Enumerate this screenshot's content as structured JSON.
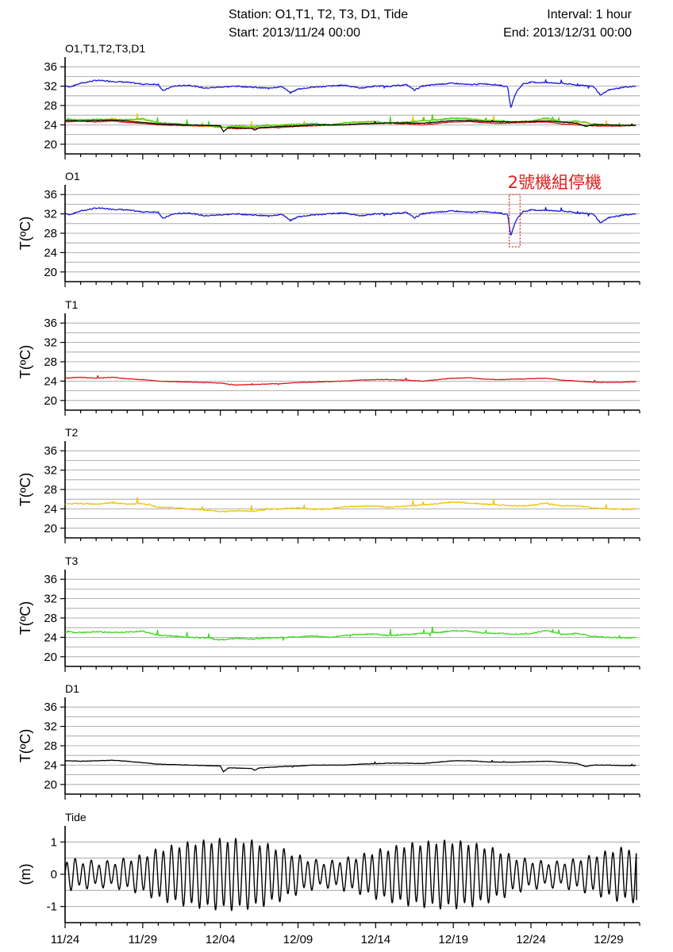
{
  "header": {
    "station": "Station: O1,T1, T2, T3, D1, Tide",
    "interval": "Interval: 1 hour",
    "start": "Start: 2013/11/24 00:00",
    "end": "End: 2013/12/31 00:00"
  },
  "colors": {
    "O1": "#1a1ad6",
    "T1": "#d81818",
    "T2": "#f0c400",
    "T3": "#3cd81e",
    "D1": "#000000",
    "Tide": "#000000",
    "annotation": "#e21b1b",
    "grid": "#9a9a9a"
  },
  "x_axis": {
    "tick_labels": [
      "11/24",
      "11/29",
      "12/04",
      "12/09",
      "12/14",
      "12/19",
      "12/24",
      "12/29"
    ],
    "tick_days": [
      0,
      5,
      10,
      15,
      20,
      25,
      30,
      35
    ],
    "xlim_days": [
      0,
      37
    ]
  },
  "chart_data": [
    {
      "type": "line",
      "title": "O1,T1,T2,T3,D1",
      "ylabel": "",
      "ylim": [
        18,
        38
      ],
      "yticks": [
        20,
        24,
        28,
        32,
        36
      ],
      "grid": true,
      "series": [
        "O1",
        "T1",
        "T2",
        "T3",
        "D1"
      ]
    },
    {
      "type": "line",
      "title": "O1",
      "ylabel": "T(ºC)",
      "ylim": [
        18,
        38
      ],
      "yticks": [
        20,
        24,
        28,
        32,
        36
      ],
      "grid": true,
      "series": [
        "O1"
      ],
      "annotation": {
        "text": "2號機組停機",
        "x_range_days": [
          28.6,
          29.3
        ],
        "y_range": [
          25.2,
          36.0
        ]
      }
    },
    {
      "type": "line",
      "title": "T1",
      "ylabel": "T(ºC)",
      "ylim": [
        18,
        38
      ],
      "yticks": [
        20,
        24,
        28,
        32,
        36
      ],
      "grid": true,
      "series": [
        "T1"
      ]
    },
    {
      "type": "line",
      "title": "T2",
      "ylabel": "T(ºC)",
      "ylim": [
        18,
        38
      ],
      "yticks": [
        20,
        24,
        28,
        32,
        36
      ],
      "grid": true,
      "series": [
        "T2"
      ]
    },
    {
      "type": "line",
      "title": "T3",
      "ylabel": "T(ºC)",
      "ylim": [
        18,
        38
      ],
      "yticks": [
        20,
        24,
        28,
        32,
        36
      ],
      "grid": true,
      "series": [
        "T3"
      ]
    },
    {
      "type": "line",
      "title": "D1",
      "ylabel": "T(ºC)",
      "ylim": [
        18,
        38
      ],
      "yticks": [
        20,
        24,
        28,
        32,
        36
      ],
      "grid": true,
      "series": [
        "D1"
      ]
    },
    {
      "type": "line",
      "title": "Tide",
      "ylabel": "(m)",
      "ylim": [
        -1.5,
        1.5
      ],
      "yticks": [
        -1,
        0,
        1
      ],
      "grid": true,
      "series": [
        "Tide"
      ]
    }
  ],
  "series_data": {
    "O1": {
      "x": [
        0,
        0.3,
        1,
        2,
        3,
        4,
        5,
        6,
        6.3,
        6.6,
        7,
        8,
        9,
        10,
        11,
        12,
        13,
        14,
        14.5,
        15,
        16,
        17,
        18,
        19,
        20,
        21,
        22,
        22.5,
        23,
        24,
        25,
        26,
        27,
        28,
        28.5,
        28.7,
        28.9,
        29.1,
        29.5,
        30,
        31,
        32,
        33,
        34,
        34.5,
        35,
        36,
        36.8
      ],
      "y": [
        32.2,
        31.8,
        32.6,
        33.2,
        33.0,
        32.8,
        32.4,
        32.4,
        31.0,
        31.5,
        32.0,
        32.2,
        31.6,
        31.8,
        32.0,
        31.8,
        31.6,
        31.9,
        30.6,
        31.4,
        31.8,
        32.0,
        32.2,
        31.6,
        32.0,
        32.0,
        32.3,
        31.2,
        32.0,
        32.4,
        32.6,
        32.3,
        32.5,
        32.2,
        31.8,
        27.5,
        29.5,
        31.0,
        32.5,
        32.8,
        32.7,
        32.6,
        32.2,
        32.0,
        30.1,
        31.2,
        31.8,
        32.0
      ]
    },
    "T1": {
      "x": [
        0,
        1,
        2,
        3,
        4,
        5,
        6,
        7,
        8,
        9,
        10,
        11,
        12,
        13,
        14,
        15,
        16,
        17,
        18,
        19,
        20,
        21,
        22,
        23,
        24,
        25,
        26,
        27,
        28,
        29,
        30,
        31,
        32,
        33,
        34,
        35,
        36,
        36.8
      ],
      "y": [
        24.6,
        24.8,
        24.6,
        24.8,
        24.5,
        24.3,
        24.0,
        23.9,
        23.8,
        23.7,
        23.6,
        23.2,
        23.3,
        23.4,
        23.5,
        23.7,
        23.8,
        23.9,
        24.0,
        24.2,
        24.3,
        24.3,
        24.2,
        24.0,
        24.3,
        24.6,
        24.7,
        24.4,
        24.3,
        24.4,
        24.5,
        24.6,
        24.2,
        24.0,
        23.8,
        23.7,
        23.8,
        23.9
      ]
    },
    "T2": {
      "x": [
        0,
        1,
        2,
        3,
        4,
        5,
        6,
        7,
        8,
        9,
        10,
        11,
        12,
        13,
        14,
        15,
        16,
        17,
        18,
        19,
        20,
        21,
        22,
        23,
        24,
        25,
        26,
        27,
        28,
        29,
        30,
        31,
        32,
        33,
        34,
        35,
        36,
        36.8
      ],
      "y": [
        25.0,
        25.1,
        25.0,
        25.3,
        25.0,
        25.1,
        24.3,
        24.2,
        24.0,
        23.8,
        23.4,
        23.6,
        23.5,
        23.9,
        24.0,
        24.2,
        23.9,
        24.0,
        24.4,
        24.5,
        24.6,
        24.3,
        24.6,
        24.8,
        25.1,
        25.4,
        25.2,
        25.0,
        24.8,
        24.6,
        24.7,
        25.2,
        24.6,
        24.6,
        24.2,
        24.0,
        23.9,
        24.0
      ]
    },
    "T3": {
      "x": [
        0,
        1,
        2,
        3,
        4,
        5,
        6,
        7,
        8,
        9,
        10,
        11,
        12,
        13,
        14,
        15,
        16,
        17,
        18,
        19,
        20,
        21,
        22,
        23,
        24,
        25,
        26,
        27,
        28,
        29,
        30,
        31,
        32,
        33,
        34,
        35,
        36,
        36.8
      ],
      "y": [
        25.1,
        25.0,
        25.2,
        25.0,
        25.1,
        25.3,
        24.4,
        24.3,
        24.0,
        23.9,
        23.5,
        23.8,
        23.6,
        23.9,
        24.0,
        24.1,
        24.3,
        24.0,
        24.4,
        24.6,
        24.7,
        24.3,
        24.6,
        24.8,
        25.0,
        25.4,
        25.3,
        24.9,
        24.8,
        24.7,
        24.8,
        25.4,
        24.6,
        24.8,
        24.2,
        24.0,
        23.9,
        24.0
      ]
    },
    "D1": {
      "x": [
        0,
        1,
        2,
        3,
        4,
        5,
        6,
        7,
        8,
        9,
        10,
        10.2,
        10.5,
        11,
        12,
        12.2,
        12.5,
        13,
        14,
        15,
        16,
        17,
        18,
        19,
        20,
        21,
        22,
        23,
        24,
        25,
        26,
        27,
        28,
        29,
        30,
        31,
        32,
        33,
        33.5,
        34,
        35,
        36,
        36.8
      ],
      "y": [
        24.9,
        24.8,
        24.9,
        25.0,
        24.8,
        24.5,
        24.2,
        24.1,
        24.0,
        23.9,
        23.8,
        22.6,
        23.4,
        23.4,
        23.3,
        22.9,
        23.4,
        23.5,
        23.7,
        23.8,
        24.0,
        24.0,
        24.0,
        24.2,
        24.3,
        24.4,
        24.4,
        24.3,
        24.6,
        24.9,
        24.9,
        24.7,
        24.6,
        24.6,
        24.7,
        24.8,
        24.6,
        24.3,
        23.7,
        24.0,
        24.0,
        23.9,
        23.9
      ]
    },
    "Tide": {
      "x": [
        0,
        1,
        2,
        3,
        4,
        5,
        6,
        7,
        8,
        9,
        10,
        11,
        12,
        13,
        14,
        15,
        16,
        17,
        18,
        19,
        20,
        21,
        22,
        23,
        24,
        25,
        26,
        27,
        28,
        29,
        30,
        31,
        32,
        33,
        34,
        35,
        36,
        36.8
      ],
      "amplitude": [
        0.45,
        0.4,
        0.35,
        0.35,
        0.45,
        0.55,
        0.75,
        0.85,
        0.95,
        1.0,
        1.05,
        1.05,
        1.0,
        0.9,
        0.75,
        0.55,
        0.4,
        0.35,
        0.45,
        0.55,
        0.7,
        0.8,
        0.9,
        0.95,
        1.0,
        1.0,
        0.95,
        0.85,
        0.7,
        0.5,
        0.4,
        0.35,
        0.35,
        0.45,
        0.55,
        0.7,
        0.8,
        0.8
      ],
      "end_value": -0.8
    }
  }
}
